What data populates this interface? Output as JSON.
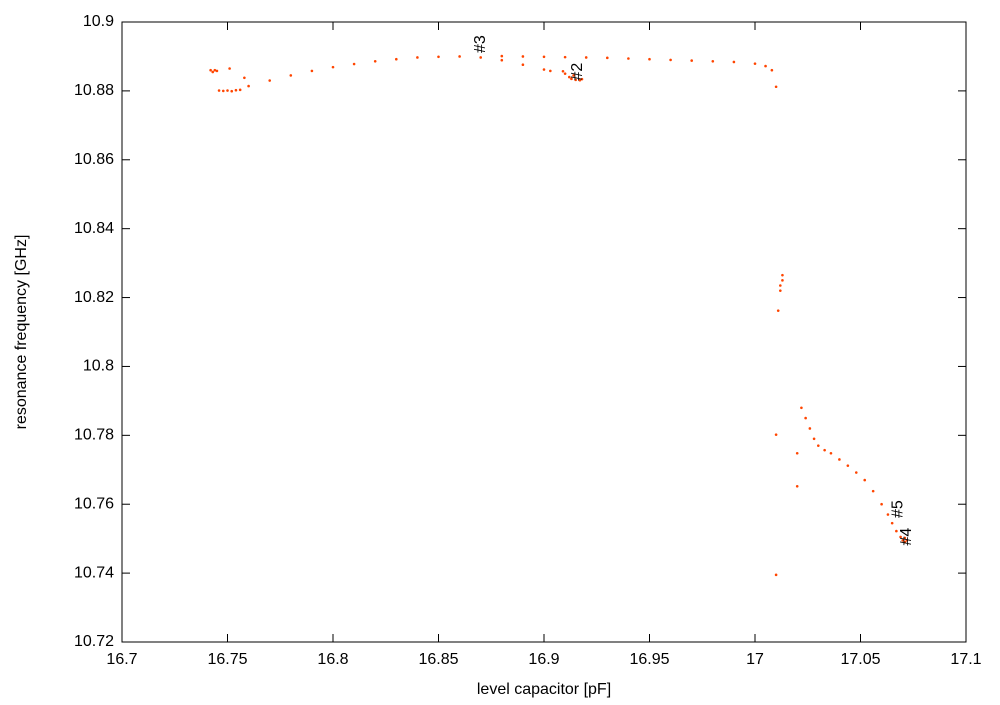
{
  "chart_data": {
    "type": "scatter",
    "x_label": "level capacitor [pF]",
    "y_label": "resonance frequency [GHz]",
    "color": "#ff4500",
    "xlim": [
      16.7,
      17.1
    ],
    "ylim": [
      10.72,
      10.9
    ],
    "xticks": [
      16.7,
      16.75,
      16.8,
      16.85,
      16.9,
      16.95,
      17,
      17.05,
      17.1
    ],
    "yticks": [
      10.72,
      10.74,
      10.76,
      10.78,
      10.8,
      10.82,
      10.84,
      10.86,
      10.88,
      10.9
    ],
    "x": [
      16.742,
      16.743,
      16.744,
      16.745,
      16.751,
      16.758,
      16.746,
      16.748,
      16.75,
      16.752,
      16.754,
      16.756,
      16.76,
      16.77,
      16.78,
      16.79,
      16.8,
      16.81,
      16.82,
      16.83,
      16.84,
      16.85,
      16.86,
      16.87,
      16.88,
      16.89,
      16.9,
      16.903,
      16.88,
      16.89,
      16.9,
      16.91,
      16.92,
      16.93,
      16.94,
      16.95,
      16.96,
      16.97,
      16.98,
      16.99,
      17.0,
      17.005,
      17.008,
      17.01,
      16.91,
      16.912,
      16.913,
      16.915,
      16.917,
      16.918,
      16.914,
      16.909,
      17.013,
      17.013,
      17.012,
      17.012,
      17.011,
      17.01,
      17.01,
      17.02,
      17.02,
      17.022,
      17.024,
      17.026,
      17.028,
      17.03,
      17.033,
      17.036,
      17.04,
      17.044,
      17.048,
      17.052,
      17.056,
      17.06,
      17.063,
      17.065,
      17.067,
      17.069,
      17.07,
      17.071,
      17.072,
      17.071
    ],
    "y": [
      10.886,
      10.8855,
      10.886,
      10.8858,
      10.8865,
      10.8838,
      10.8801,
      10.88,
      10.8801,
      10.8799,
      10.8802,
      10.8803,
      10.8814,
      10.883,
      10.8845,
      10.8858,
      10.8869,
      10.8878,
      10.8886,
      10.8892,
      10.8897,
      10.8899,
      10.89,
      10.8897,
      10.8889,
      10.8876,
      10.8862,
      10.8858,
      10.8901,
      10.89,
      10.8899,
      10.8898,
      10.8897,
      10.8896,
      10.8894,
      10.8892,
      10.889,
      10.8888,
      10.8886,
      10.8884,
      10.8879,
      10.8872,
      10.886,
      10.8812,
      10.885,
      10.884,
      10.8835,
      10.8832,
      10.8831,
      10.8834,
      10.8845,
      10.8857,
      10.8265,
      10.825,
      10.8235,
      10.822,
      10.8162,
      10.7802,
      10.7395,
      10.7748,
      10.7652,
      10.788,
      10.785,
      10.782,
      10.779,
      10.777,
      10.7757,
      10.7748,
      10.773,
      10.7712,
      10.7692,
      10.767,
      10.7638,
      10.76,
      10.757,
      10.7545,
      10.7522,
      10.7505,
      10.7495,
      10.749,
      10.7495,
      10.7502
    ],
    "annotations": [
      {
        "text": "#3",
        "x": 16.87,
        "y": 10.891
      },
      {
        "text": "#2",
        "x": 16.916,
        "y": 10.883
      },
      {
        "text": "#5",
        "x": 17.068,
        "y": 10.756
      },
      {
        "text": "#4",
        "x": 17.072,
        "y": 10.748
      }
    ]
  }
}
